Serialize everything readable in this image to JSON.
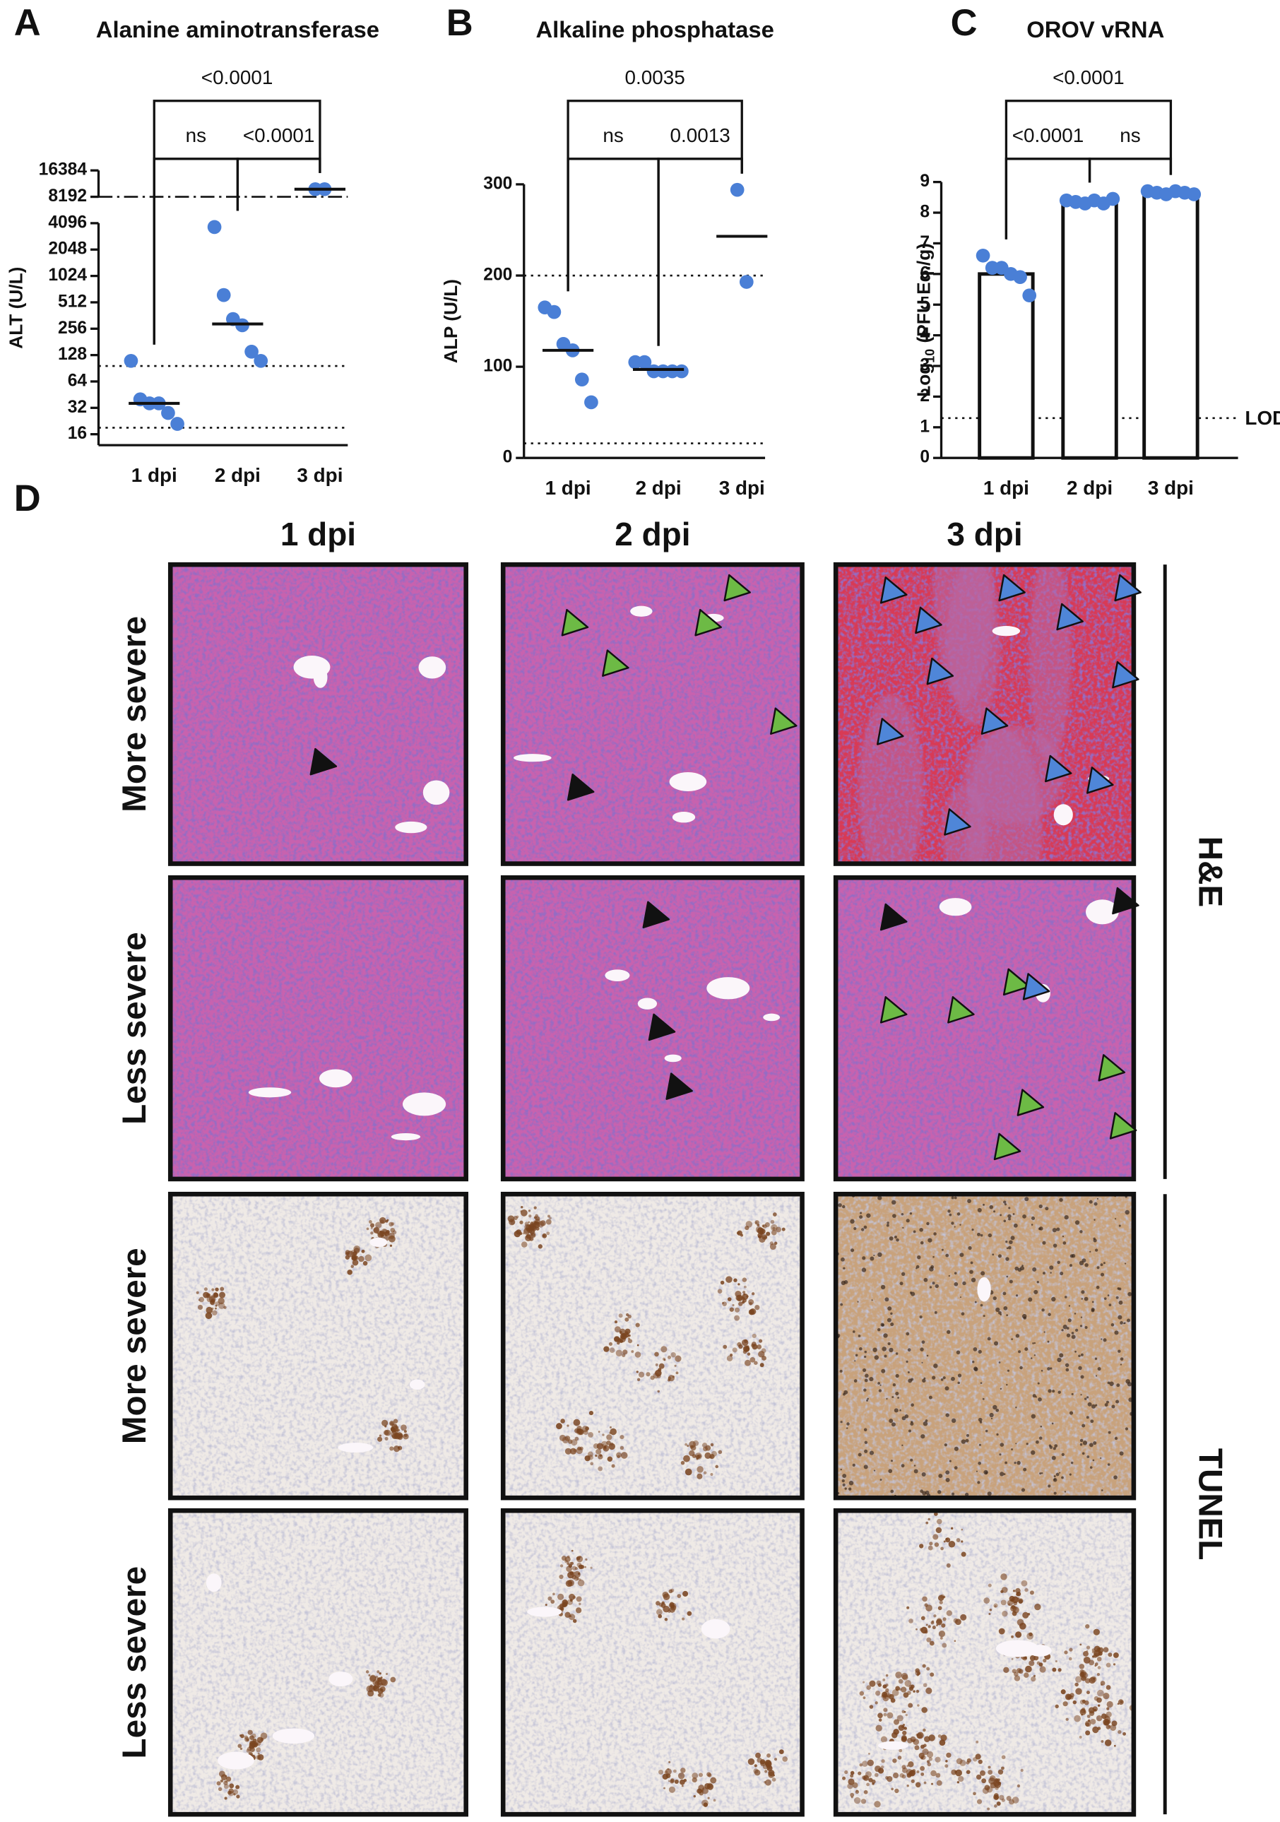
{
  "chart_data": [
    {
      "panel": "A",
      "type": "dotplot",
      "title": "Alanine aminotransferase",
      "ylabel": "ALT (U/L)",
      "categories": [
        "1 dpi",
        "2 dpi",
        "3 dpi"
      ],
      "points": [
        [
          110,
          40,
          36,
          36,
          28,
          21
        ],
        [
          3700,
          620,
          330,
          280,
          140,
          110
        ],
        [
          10000,
          10000
        ]
      ],
      "values": [
        36,
        290,
        10000
      ],
      "point_color": "#4a7fd6",
      "log_base": 2,
      "ylim": [
        12,
        16384
      ],
      "yticks": [
        16,
        32,
        64,
        128,
        256,
        512,
        1024,
        2048,
        4096,
        8192,
        16384
      ],
      "axis_break": [
        4096,
        8192
      ],
      "reference_lines": [
        {
          "value": 96,
          "style": "dotted"
        },
        {
          "value": 19,
          "style": "dotted"
        },
        {
          "value": 8192,
          "style": "dashdot"
        }
      ],
      "comparisons": [
        {
          "between": [
            0,
            2
          ],
          "label": "<0.0001"
        },
        {
          "between": [
            0,
            1
          ],
          "label": "ns"
        },
        {
          "between": [
            1,
            2
          ],
          "label": "<0.0001"
        }
      ]
    },
    {
      "panel": "B",
      "type": "dotplot",
      "title": "Alkaline phosphatase",
      "ylabel": "ALP (U/L)",
      "categories": [
        "1 dpi",
        "2 dpi",
        "3 dpi"
      ],
      "points": [
        [
          165,
          160,
          125,
          118,
          86,
          61
        ],
        [
          105,
          105,
          95,
          95,
          95,
          95
        ],
        [
          294,
          193
        ]
      ],
      "values": [
        118,
        97,
        243
      ],
      "point_color": "#4a7fd6",
      "ylim": [
        0,
        300
      ],
      "yticks": [
        0,
        100,
        200,
        300
      ],
      "reference_lines": [
        {
          "value": 200,
          "style": "dotted"
        },
        {
          "value": 16,
          "style": "dotted"
        }
      ],
      "comparisons": [
        {
          "between": [
            0,
            2
          ],
          "label": "0.0035"
        },
        {
          "between": [
            0,
            1
          ],
          "label": "ns"
        },
        {
          "between": [
            1,
            2
          ],
          "label": "0.0013"
        }
      ]
    },
    {
      "panel": "C",
      "type": "bar",
      "title": "OROV vRNA",
      "ylabel": {
        "text": "Log",
        "subscript": "10",
        "rest": "(PFU Eq./g)"
      },
      "categories": [
        "1 dpi",
        "2 dpi",
        "3 dpi"
      ],
      "points": [
        [
          6.6,
          6.2,
          6.2,
          6.0,
          5.9,
          5.3
        ],
        [
          8.4,
          8.35,
          8.3,
          8.4,
          8.3,
          8.45
        ],
        [
          8.7,
          8.65,
          8.6,
          8.7,
          8.65,
          8.6
        ]
      ],
      "values": [
        6.0,
        8.35,
        8.65
      ],
      "point_color": "#4a7fd6",
      "ylim": [
        0,
        9
      ],
      "yticks": [
        0,
        1,
        2,
        3,
        4,
        5,
        6,
        7,
        8,
        9
      ],
      "reference_lines": [
        {
          "value": 1.3,
          "style": "dotted",
          "label": "LOD"
        }
      ],
      "comparisons": [
        {
          "between": [
            0,
            2
          ],
          "label": "<0.0001"
        },
        {
          "between": [
            0,
            1
          ],
          "label": "<0.0001"
        },
        {
          "between": [
            1,
            2
          ],
          "label": "ns"
        }
      ]
    }
  ],
  "panel_d": {
    "label": "D",
    "columns": [
      "1 dpi",
      "2 dpi",
      "3 dpi"
    ],
    "rows": [
      "More severe",
      "Less severe",
      "More severe",
      "Less severe"
    ],
    "stains": [
      "H&E",
      "TUNEL"
    ]
  }
}
